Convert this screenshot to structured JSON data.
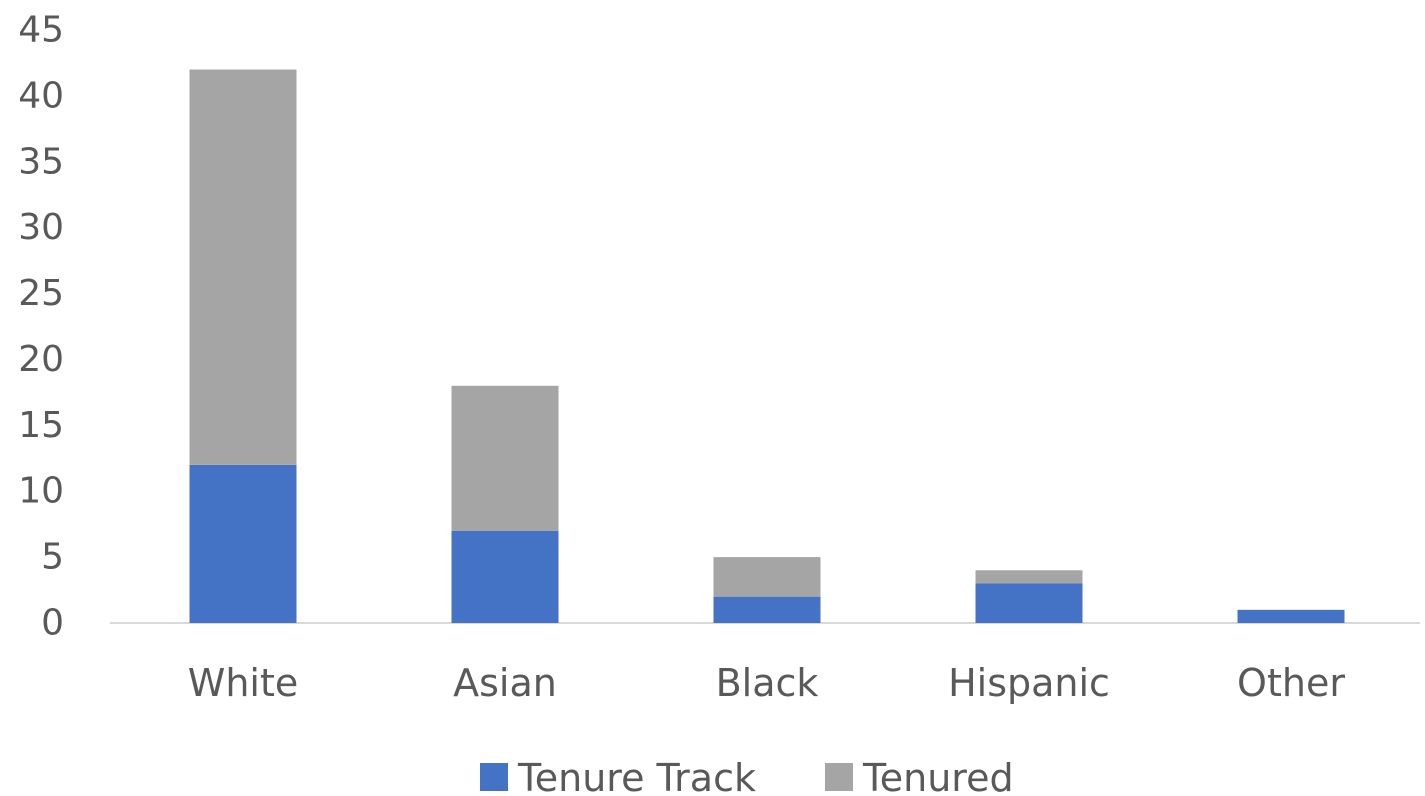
{
  "chart_data": {
    "type": "bar",
    "stacked": true,
    "title": "",
    "xlabel": "",
    "ylabel": "",
    "categories": [
      "White",
      "Asian",
      "Black",
      "Hispanic",
      "Other"
    ],
    "series": [
      {
        "name": "Tenure Track",
        "values": [
          12,
          7,
          2,
          3,
          1
        ],
        "color": "#4472C4"
      },
      {
        "name": "Tenured",
        "values": [
          30,
          11,
          3,
          1,
          0
        ],
        "color": "#A5A5A5"
      }
    ],
    "ylim": [
      0,
      45
    ],
    "yticks": [
      0,
      5,
      10,
      15,
      20,
      25,
      30,
      35,
      40,
      45
    ],
    "grid": false,
    "legend": "bottom"
  }
}
